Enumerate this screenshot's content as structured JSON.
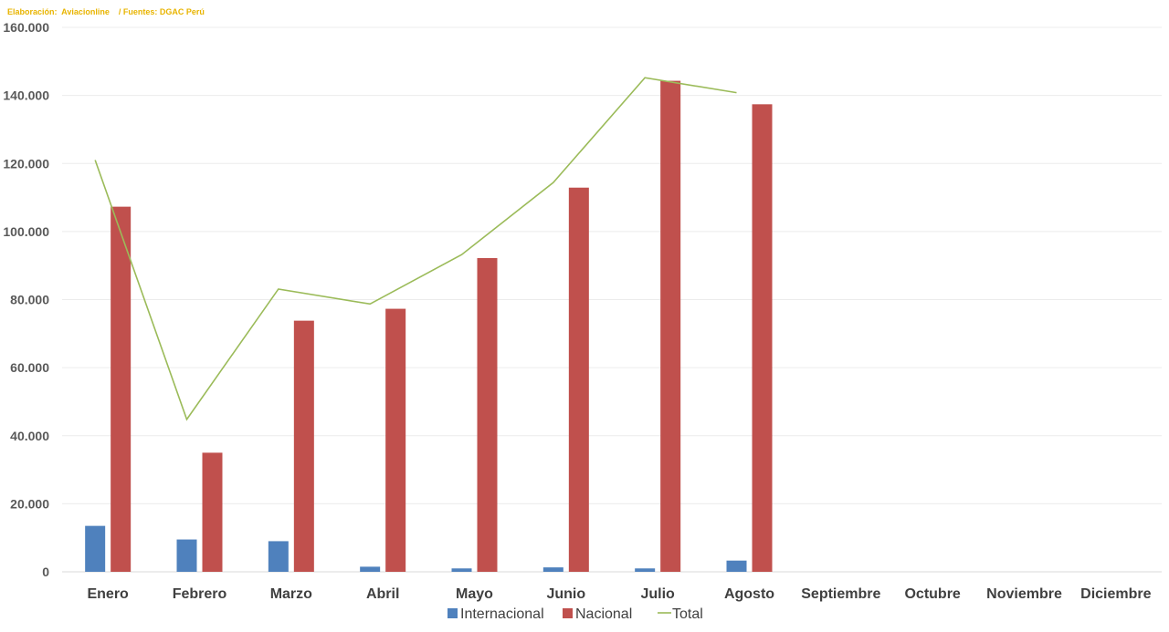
{
  "source_note": "Elaboración:  Aviacionline    / Fuentes: DGAC Perú",
  "chart_data": {
    "type": "bar",
    "categories": [
      "Enero",
      "Febrero",
      "Marzo",
      "Abril",
      "Mayo",
      "Junio",
      "Julio",
      "Agosto",
      "Septiembre",
      "Octubre",
      "Noviembre",
      "Diciembre"
    ],
    "ylim": [
      0,
      160000
    ],
    "yticks": [
      0,
      20000,
      40000,
      60000,
      80000,
      100000,
      120000,
      140000,
      160000
    ],
    "ytick_labels": [
      "0",
      "20.000",
      "40.000",
      "60.000",
      "80.000",
      "100.000",
      "120.000",
      "140.000",
      "160.000"
    ],
    "grid": true,
    "legend_position": "bottom",
    "series": [
      {
        "name": "Internacional",
        "kind": "bar",
        "color": "#4f81bd",
        "values": [
          13500,
          9500,
          9000,
          1500,
          1000,
          1300,
          1000,
          3300,
          null,
          null,
          null,
          null
        ]
      },
      {
        "name": "Nacional",
        "kind": "bar",
        "color": "#c0504d",
        "values": [
          107300,
          35000,
          73800,
          77300,
          92200,
          112900,
          144300,
          137400,
          null,
          null,
          null,
          null
        ]
      },
      {
        "name": "Total",
        "kind": "line",
        "color": "#9bbb59",
        "values": [
          121000,
          44800,
          83100,
          78700,
          93200,
          114400,
          145200,
          140800,
          null,
          null,
          null,
          null
        ]
      }
    ]
  }
}
